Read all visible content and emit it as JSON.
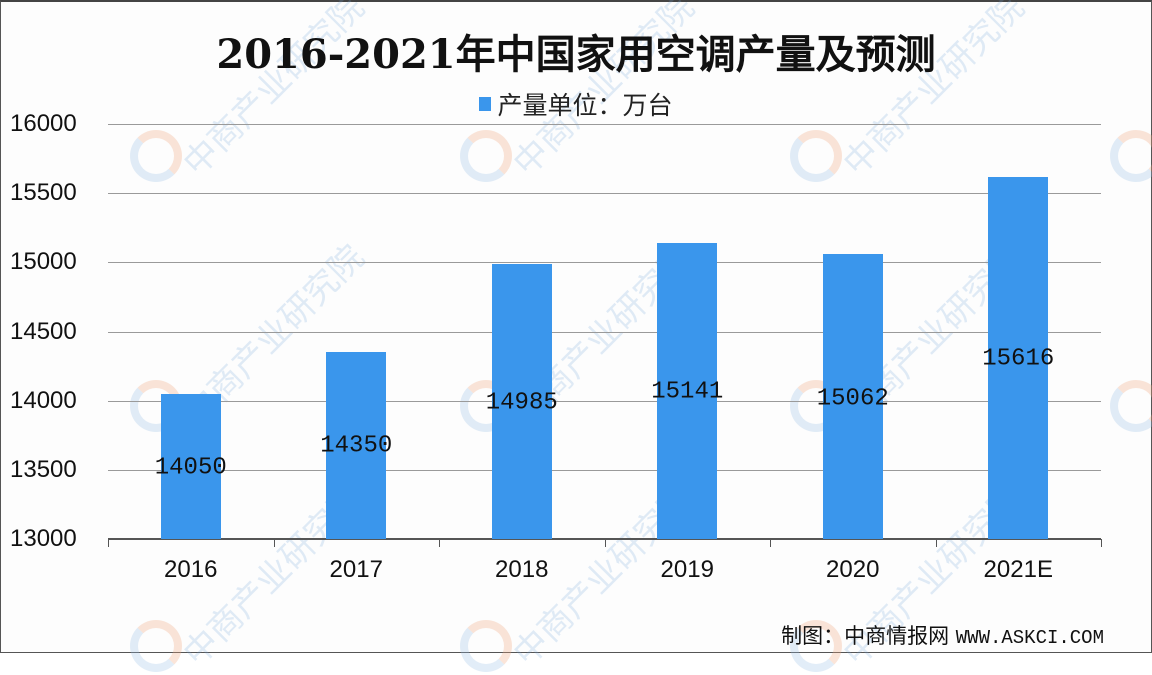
{
  "title": "2016-2021年中国家用空调产量及预测",
  "legend": {
    "label": "产量单位：万台",
    "color": "#3a96ec"
  },
  "footer": {
    "credit": "制图：中商情报网",
    "url": "WWW.ASKCI.COM"
  },
  "watermark": {
    "text": "中商产业研究院"
  },
  "y_ticks": [
    "16000",
    "15500",
    "15000",
    "14500",
    "14000",
    "13500",
    "13000"
  ],
  "categories": [
    "2016",
    "2017",
    "2018",
    "2019",
    "2020",
    "2021E"
  ],
  "labels": [
    "14050",
    "14350",
    "14985",
    "15141",
    "15062",
    "15616"
  ],
  "chart_data": {
    "type": "bar",
    "title": "2016-2021年中国家用空调产量及预测",
    "categories": [
      "2016",
      "2017",
      "2018",
      "2019",
      "2020",
      "2021E"
    ],
    "series": [
      {
        "name": "产量单位：万台",
        "values": [
          14050,
          14350,
          14985,
          15141,
          15062,
          15616
        ],
        "color": "#3a96ec"
      }
    ],
    "xlabel": "",
    "ylabel": "",
    "ylim": [
      13000,
      16000
    ],
    "yticks": [
      13000,
      13500,
      14000,
      14500,
      15000,
      15500,
      16000
    ],
    "grid": true,
    "legend_position": "top",
    "data_labels": true,
    "source": "制图：中商情报网 WWW.ASKCI.COM"
  }
}
